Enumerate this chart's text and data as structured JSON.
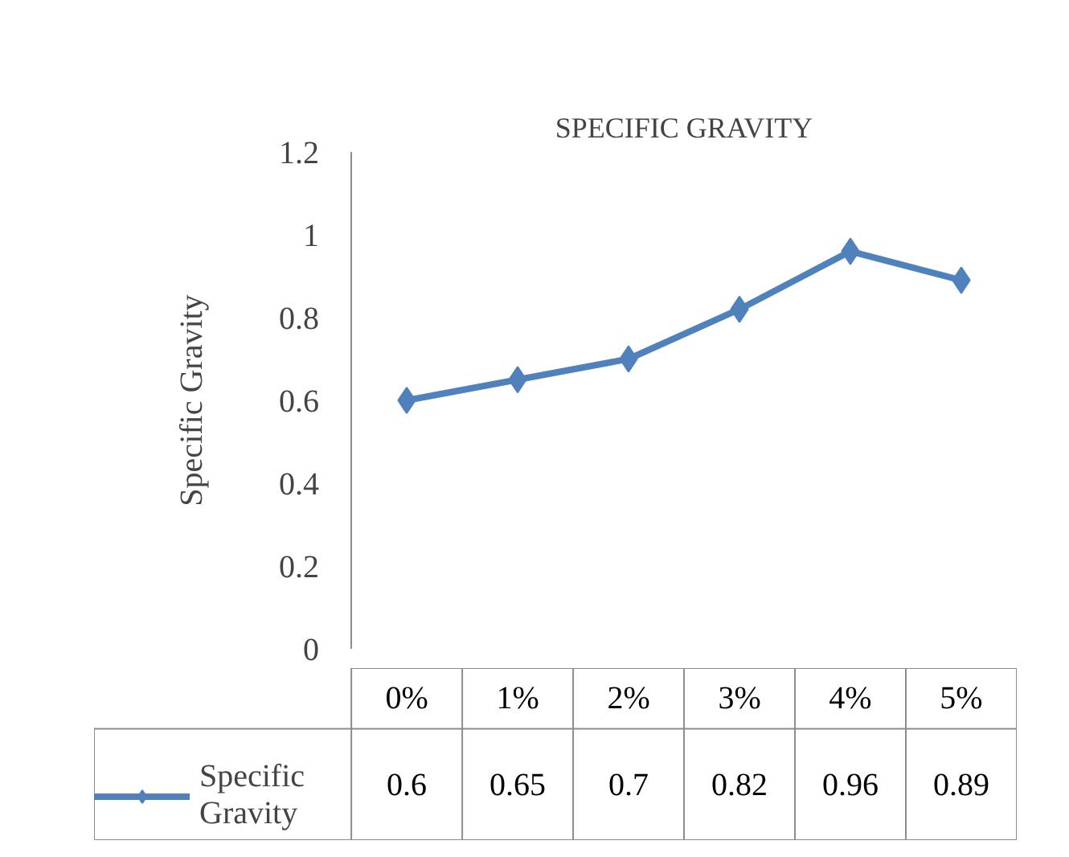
{
  "chart_data": {
    "type": "line",
    "title": "SPECIFIC GRAVITY",
    "ylabel": "Specific Gravity",
    "categories": [
      "0%",
      "1%",
      "2%",
      "3%",
      "4%",
      "5%"
    ],
    "series": [
      {
        "name": "Specific Gravity",
        "color": "#4f81bd",
        "values": [
          0.6,
          0.65,
          0.7,
          0.82,
          0.96,
          0.89
        ]
      }
    ],
    "ylim": [
      0,
      1.2
    ],
    "yticks": [
      0,
      0.2,
      0.4,
      0.6,
      0.8,
      1,
      1.2
    ],
    "marker": "diamond",
    "line_style": "solid",
    "grid": false,
    "legend": "bottom",
    "data_labels": true
  }
}
